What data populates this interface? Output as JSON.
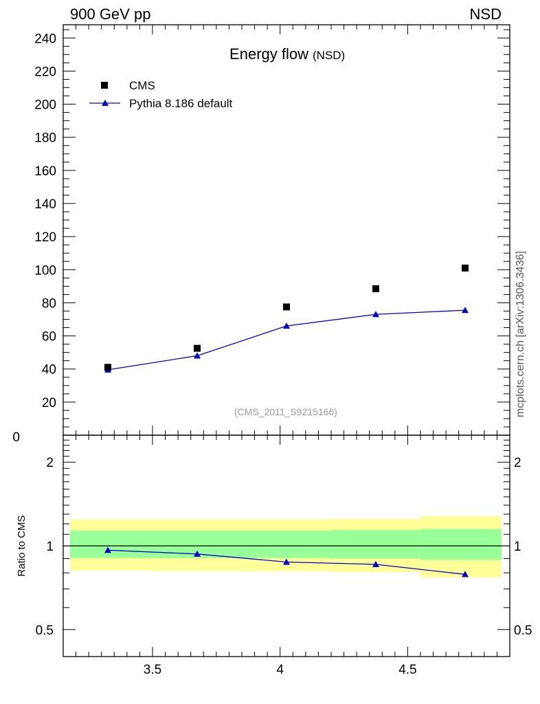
{
  "header": {
    "left_label": "900 GeV pp",
    "right_label": "NSD"
  },
  "side_label": "mcplots.cern.ch [arXiv:1306.3436]",
  "chart_data": [
    {
      "type": "scatter",
      "title": "Energy flow",
      "title_suffix": "(NSD)",
      "analysis_label": "(CMS_2011_S9215166)",
      "ylim": [
        0,
        248
      ],
      "yticks": [
        20,
        40,
        60,
        80,
        100,
        120,
        140,
        160,
        180,
        200,
        220,
        240
      ],
      "ytick_labels": [
        "20",
        "40",
        "60",
        "80",
        "100",
        "120",
        "140",
        "160",
        "180",
        "200",
        "220",
        "240"
      ],
      "ytick_bottom_label": "0",
      "xlim": [
        3.15,
        4.9
      ],
      "legend_position": "top-left",
      "series": [
        {
          "name": "CMS",
          "marker": "square",
          "color": "#000000",
          "x": [
            3.325,
            3.675,
            4.025,
            4.375,
            4.725
          ],
          "y": [
            41,
            52.5,
            77.5,
            88.5,
            101
          ]
        },
        {
          "name": "Pythia 8.186 default",
          "marker": "triangle",
          "color": "#0000cc",
          "line": true,
          "x": [
            3.325,
            3.675,
            4.025,
            4.375,
            4.725
          ],
          "y": [
            39.5,
            48,
            66,
            73,
            75.5
          ]
        }
      ]
    },
    {
      "type": "line",
      "ylabel": "Ratio to CMS",
      "yscale": "log",
      "ylim": [
        0.4,
        2.5
      ],
      "yticks": [
        0.5,
        1,
        2
      ],
      "ytick_labels": [
        "0.5",
        "1",
        "2"
      ],
      "xlim": [
        3.15,
        4.9
      ],
      "xticks": [
        3.5,
        4,
        4.5
      ],
      "xtick_labels": [
        "3.5",
        "4",
        "4.5"
      ],
      "reference_line": 1,
      "bands": {
        "bins": [
          [
            3.15,
            3.5
          ],
          [
            3.5,
            3.85
          ],
          [
            3.85,
            4.2
          ],
          [
            4.2,
            4.55
          ],
          [
            4.55,
            4.9
          ]
        ],
        "inner": [
          [
            0.905,
            1.135
          ],
          [
            0.905,
            1.135
          ],
          [
            0.905,
            1.135
          ],
          [
            0.9,
            1.14
          ],
          [
            0.89,
            1.15
          ]
        ],
        "outer": [
          [
            0.815,
            1.245
          ],
          [
            0.81,
            1.245
          ],
          [
            0.81,
            1.245
          ],
          [
            0.805,
            1.25
          ],
          [
            0.77,
            1.28
          ]
        ],
        "inner_color": "#99ff99",
        "outer_color": "#ffff99"
      },
      "series": [
        {
          "name": "Pythia 8.186 default",
          "marker": "triangle",
          "color": "#0000cc",
          "x": [
            3.325,
            3.675,
            4.025,
            4.375,
            4.725
          ],
          "y": [
            0.965,
            0.935,
            0.875,
            0.858,
            0.79
          ]
        }
      ]
    }
  ]
}
